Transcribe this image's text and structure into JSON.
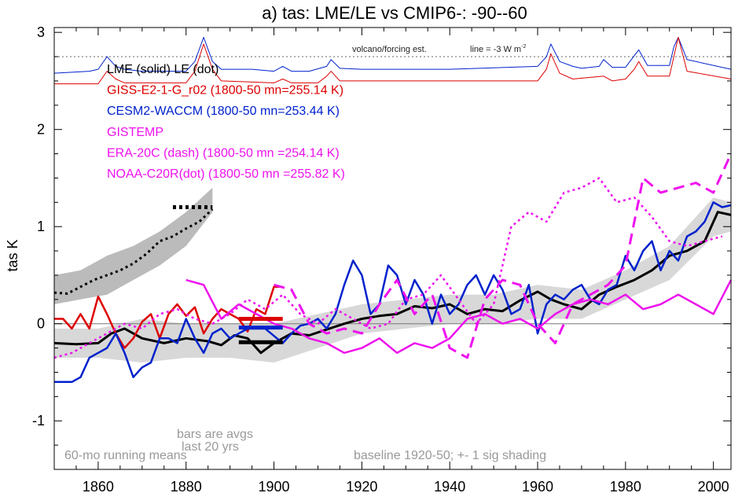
{
  "chart_data": {
    "type": "line",
    "title": "a) tas: LME/LE vs CMIP6-: -90--60",
    "ylabel": "tas K",
    "xlabel": "",
    "xlim": [
      1850,
      2004
    ],
    "ylim": [
      -1.5,
      3.05
    ],
    "x_ticks": [
      1860,
      1880,
      1900,
      1920,
      1940,
      1960,
      1980,
      2000
    ],
    "y_ticks": [
      -1,
      0,
      1,
      2,
      3
    ],
    "y_tick_labels": [
      "-1",
      "0",
      "1",
      "2",
      "3"
    ],
    "legend": [
      {
        "text": "LME (solid)   LE (dot)",
        "color": "#000000"
      },
      {
        "text": "GISS-E2-1-G_r02 (1800-50 mn=255.14 K)",
        "color": "#dd0000"
      },
      {
        "text": "CESM2-WACCM (1800-50 mn=253.44 K)",
        "color": "#0022cc"
      },
      {
        "text": "GISTEMP",
        "color": "#ee11ee"
      },
      {
        "text": "ERA-20C (dash) (1800-50 mn =254.14 K)",
        "color": "#ee11ee"
      },
      {
        "text": "NOAA-C20R(dot) (1800-50 mn =255.82 K)",
        "color": "#ee11ee"
      }
    ],
    "annotations": {
      "volcano": "volcano/forcing est.",
      "line_ref_prefix": "line = -3 W m",
      "line_ref_sup": "-2",
      "bars_1": "bars are avgs",
      "bars_2": "last 20 yrs",
      "running": "60-mo running means",
      "baseline": "baseline 1920-50; +- 1 sig shading"
    },
    "colors": {
      "lme": "#000000",
      "giss": "#dd0000",
      "cesm": "#0022cc",
      "obs": "#ee11ee",
      "shade": "#d8d8d8",
      "shade_le": "#bbbbbb",
      "annot": "#999999"
    },
    "volcano_reference_y": 2.75,
    "series": [
      {
        "name": "LME (solid)",
        "style": "solid",
        "color": "#000000",
        "width": 3,
        "x": [
          1850,
          1855,
          1860,
          1863,
          1866,
          1870,
          1875,
          1880,
          1885,
          1888,
          1891,
          1894,
          1897,
          1900,
          1904,
          1908,
          1912,
          1916,
          1920,
          1924,
          1928,
          1932,
          1936,
          1940,
          1944,
          1948,
          1952,
          1956,
          1960,
          1963,
          1966,
          1970,
          1974,
          1978,
          1982,
          1986,
          1990,
          1994,
          1998,
          2001,
          2004
        ],
        "y": [
          -0.2,
          -0.21,
          -0.2,
          -0.1,
          -0.05,
          -0.15,
          -0.2,
          -0.15,
          -0.18,
          -0.22,
          -0.12,
          -0.15,
          -0.3,
          -0.2,
          -0.1,
          -0.12,
          -0.06,
          0,
          0.05,
          0.08,
          0.1,
          0.18,
          0.16,
          0.2,
          0.1,
          0.15,
          0.13,
          0.24,
          0.33,
          0.25,
          0.2,
          0.15,
          0.3,
          0.38,
          0.45,
          0.55,
          0.7,
          0.75,
          0.85,
          1.15,
          1.12
        ]
      },
      {
        "name": "LE (dot)",
        "style": "dot",
        "color": "#000000",
        "width": 3,
        "x": [
          1850,
          1853,
          1856,
          1859,
          1862,
          1865,
          1868,
          1871,
          1874,
          1877,
          1880,
          1883,
          1886
        ],
        "y": [
          0.32,
          0.31,
          0.38,
          0.45,
          0.5,
          0.55,
          0.62,
          0.72,
          0.85,
          0.9,
          0.98,
          1.05,
          1.18
        ]
      },
      {
        "name": "GISS-E2-1-G_r02",
        "style": "solid",
        "color": "#dd0000",
        "width": 2.5,
        "x": [
          1850,
          1852,
          1854,
          1856,
          1858,
          1860,
          1862,
          1864,
          1866,
          1868,
          1870,
          1872,
          1874,
          1876,
          1878,
          1880,
          1882,
          1884,
          1886,
          1888,
          1890,
          1892,
          1894,
          1896,
          1898,
          1900,
          1902
        ],
        "y": [
          0.05,
          0.05,
          -0.05,
          0.1,
          -0.05,
          0.28,
          0.1,
          -0.1,
          -0.25,
          -0.15,
          0.02,
          0.1,
          -0.15,
          0.1,
          0.2,
          0.08,
          0.17,
          -0.1,
          0.05,
          0.15,
          0.1,
          0.05,
          -0.08,
          0.15,
          0.1,
          0.38,
          0.38
        ]
      },
      {
        "name": "CESM2-WACCM",
        "style": "solid",
        "color": "#0022cc",
        "width": 2.5,
        "x": [
          1850,
          1854,
          1856,
          1858,
          1860,
          1862,
          1864,
          1866,
          1868,
          1870,
          1872,
          1874,
          1876,
          1878,
          1880,
          1882,
          1884,
          1886,
          1888,
          1890,
          1894,
          1898,
          1902,
          1904,
          1906,
          1908,
          1910,
          1912,
          1914,
          1916,
          1918,
          1920,
          1922,
          1924,
          1926,
          1928,
          1930,
          1932,
          1934,
          1936,
          1938,
          1940,
          1942,
          1944,
          1946,
          1948,
          1950,
          1952,
          1954,
          1956,
          1958,
          1960,
          1962,
          1964,
          1966,
          1968,
          1970,
          1972,
          1974,
          1976,
          1978,
          1980,
          1982,
          1984,
          1986,
          1988,
          1990,
          1992,
          1994,
          1996,
          1998,
          2000,
          2002,
          2004
        ],
        "y": [
          -0.6,
          -0.6,
          -0.55,
          -0.35,
          -0.3,
          -0.25,
          -0.1,
          -0.3,
          -0.55,
          -0.45,
          -0.4,
          -0.15,
          -0.15,
          -0.2,
          0.05,
          -0.15,
          -0.3,
          -0.1,
          -0.05,
          -0.15,
          -0.05,
          -0.05,
          -0.2,
          -0.1,
          -0.02,
          0.0,
          0.05,
          -0.05,
          0.1,
          0.4,
          0.65,
          0.5,
          0.1,
          0.2,
          0.6,
          0.5,
          0.2,
          0.45,
          0.3,
          0.0,
          0.3,
          0.1,
          0.2,
          0.4,
          0.5,
          0.3,
          0.5,
          0.35,
          0.1,
          0.15,
          0.4,
          -0.1,
          0.2,
          0.3,
          0.25,
          0.35,
          0.4,
          0.25,
          0.2,
          0.35,
          0.4,
          0.7,
          0.55,
          0.75,
          0.85,
          0.55,
          0.75,
          0.65,
          0.9,
          0.95,
          1.05,
          1.25,
          1.2,
          1.22
        ]
      },
      {
        "name": "GISTEMP",
        "style": "solid",
        "color": "#ee11ee",
        "width": 2.5,
        "x": [
          1880,
          1884,
          1888,
          1892,
          1896,
          1900,
          1904,
          1908,
          1912,
          1916,
          1920,
          1924,
          1928,
          1932,
          1936,
          1940,
          1944,
          1948,
          1952,
          1956,
          1960,
          1964,
          1968,
          1972,
          1976,
          1980,
          1984,
          1988,
          1992,
          1996,
          2000,
          2004
        ],
        "y": [
          0.45,
          0.4,
          0.05,
          0.2,
          0.1,
          0.0,
          -0.05,
          -0.15,
          -0.2,
          -0.3,
          -0.25,
          -0.15,
          -0.3,
          -0.2,
          -0.25,
          -0.15,
          0.05,
          0.1,
          0.0,
          0.05,
          -0.05,
          0.1,
          0.2,
          0.25,
          0.2,
          0.3,
          0.15,
          0.2,
          0.3,
          0.2,
          0.1,
          0.45
        ]
      },
      {
        "name": "ERA-20C (dash)",
        "style": "dash",
        "color": "#ee11ee",
        "width": 3,
        "x": [
          1900,
          1904,
          1908,
          1912,
          1916,
          1920,
          1924,
          1928,
          1932,
          1936,
          1940,
          1944,
          1948,
          1952,
          1956,
          1960,
          1964,
          1968,
          1972,
          1976,
          1980,
          1984,
          1988,
          1992,
          1996,
          2000,
          2004
        ],
        "y": [
          0.4,
          0.35,
          0.0,
          -0.1,
          -0.05,
          -0.1,
          0.2,
          0.45,
          0.1,
          0.3,
          -0.25,
          -0.35,
          0.25,
          0.45,
          0.4,
          0.0,
          -0.2,
          0.2,
          0.3,
          0.4,
          0.6,
          1.5,
          1.35,
          1.4,
          1.45,
          1.35,
          1.75
        ]
      },
      {
        "name": "NOAA-C20R(dot)",
        "style": "dot",
        "color": "#ee11ee",
        "width": 2.5,
        "x": [
          1850,
          1854,
          1858,
          1862,
          1866,
          1870,
          1874,
          1878,
          1882,
          1886,
          1890,
          1894,
          1898,
          1902,
          1906,
          1910,
          1914,
          1918,
          1922,
          1926,
          1930,
          1934,
          1938,
          1942,
          1946,
          1950,
          1954,
          1958,
          1962,
          1966,
          1970,
          1974,
          1978,
          1982,
          1986,
          1990,
          1994,
          1998,
          2002
        ],
        "y": [
          -0.35,
          -0.3,
          -0.2,
          -0.1,
          0.0,
          -0.05,
          0.1,
          0.15,
          0.05,
          0.0,
          0.1,
          0.25,
          0.15,
          0.3,
          0.1,
          0.0,
          0.15,
          0.05,
          -0.05,
          0.0,
          0.25,
          0.3,
          0.5,
          0.25,
          0.0,
          0.2,
          1.0,
          1.15,
          1.05,
          1.35,
          1.4,
          1.5,
          1.25,
          1.3,
          1.1,
          0.85,
          0.8,
          0.85,
          0.9
        ]
      },
      {
        "name": "CESM2-WACCM forcing",
        "style": "solid",
        "color": "#0022cc",
        "width": 1,
        "x": [
          1850,
          1858,
          1860,
          1862,
          1864,
          1866,
          1870,
          1880,
          1882,
          1884,
          1886,
          1888,
          1895,
          1900,
          1902,
          1904,
          1908,
          1912,
          1913,
          1915,
          1920,
          1940,
          1960,
          1962,
          1963,
          1965,
          1968,
          1970,
          1974,
          1975,
          1977,
          1980,
          1982,
          1983,
          1985,
          1990,
          1991,
          1992,
          1994,
          2004
        ],
        "y": [
          2.58,
          2.6,
          2.62,
          2.75,
          2.65,
          2.62,
          2.6,
          2.6,
          2.7,
          2.95,
          2.7,
          2.62,
          2.62,
          2.6,
          2.65,
          2.6,
          2.6,
          2.65,
          2.72,
          2.63,
          2.62,
          2.62,
          2.65,
          2.75,
          2.88,
          2.7,
          2.65,
          2.63,
          2.65,
          2.72,
          2.64,
          2.64,
          2.76,
          2.82,
          2.66,
          2.66,
          2.85,
          2.95,
          2.72,
          2.62
        ]
      },
      {
        "name": "GISS forcing",
        "style": "solid",
        "color": "#dd0000",
        "width": 1,
        "x": [
          1850,
          1860,
          1862,
          1864,
          1866,
          1880,
          1882,
          1884,
          1886,
          1888,
          1900,
          1902,
          1904,
          1910,
          1912,
          1913,
          1915,
          1940,
          1960,
          1962,
          1963,
          1965,
          1968,
          1975,
          1977,
          1980,
          1982,
          1983,
          1985,
          1990,
          1991,
          1992,
          1994,
          2004
        ],
        "y": [
          2.47,
          2.47,
          2.6,
          2.52,
          2.48,
          2.48,
          2.6,
          2.88,
          2.62,
          2.5,
          2.48,
          2.52,
          2.48,
          2.48,
          2.55,
          2.6,
          2.5,
          2.5,
          2.5,
          2.62,
          2.78,
          2.58,
          2.52,
          2.55,
          2.5,
          2.52,
          2.62,
          2.7,
          2.55,
          2.55,
          2.75,
          2.95,
          2.6,
          2.52
        ]
      }
    ],
    "shading": [
      {
        "name": "LME +- 1 sig",
        "color": "#d8d8d8",
        "x": [
          1850,
          1860,
          1870,
          1880,
          1890,
          1900,
          1910,
          1920,
          1930,
          1940,
          1950,
          1960,
          1970,
          1980,
          1990,
          2000,
          2004
        ],
        "upper": [
          -0.05,
          -0.05,
          0.05,
          0.0,
          0.0,
          0.0,
          0.1,
          0.2,
          0.25,
          0.3,
          0.3,
          0.4,
          0.35,
          0.55,
          0.8,
          1.3,
          1.25
        ],
        "lower": [
          -0.35,
          -0.35,
          -0.4,
          -0.35,
          -0.35,
          -0.4,
          -0.25,
          -0.1,
          -0.05,
          0.0,
          0.0,
          0.05,
          0.05,
          0.25,
          0.45,
          0.9,
          0.95
        ]
      },
      {
        "name": "LE +- 1 sig",
        "color": "#bbbbbb",
        "x": [
          1850,
          1856,
          1862,
          1868,
          1874,
          1880,
          1886
        ],
        "upper": [
          0.5,
          0.55,
          0.7,
          0.8,
          0.95,
          1.15,
          1.4
        ],
        "lower": [
          0.2,
          0.25,
          0.3,
          0.45,
          0.6,
          0.8,
          1.15
        ]
      }
    ],
    "bars": [
      {
        "name": "GISS last 20 yrs",
        "color": "#dd0000",
        "x0": 1892,
        "x1": 1902,
        "y": 0.05
      },
      {
        "name": "CESM2-WACCM last 20 yrs",
        "color": "#0022cc",
        "x0": 1892,
        "x1": 1902,
        "y": -0.04
      },
      {
        "name": "LME last 20 yrs",
        "color": "#000000",
        "x0": 1892,
        "x1": 1902,
        "y": -0.19
      },
      {
        "name": "LE last 20 yrs",
        "color": "#000000",
        "x0": 1877,
        "x1": 1886,
        "y": 1.2,
        "style": "dot"
      }
    ]
  }
}
